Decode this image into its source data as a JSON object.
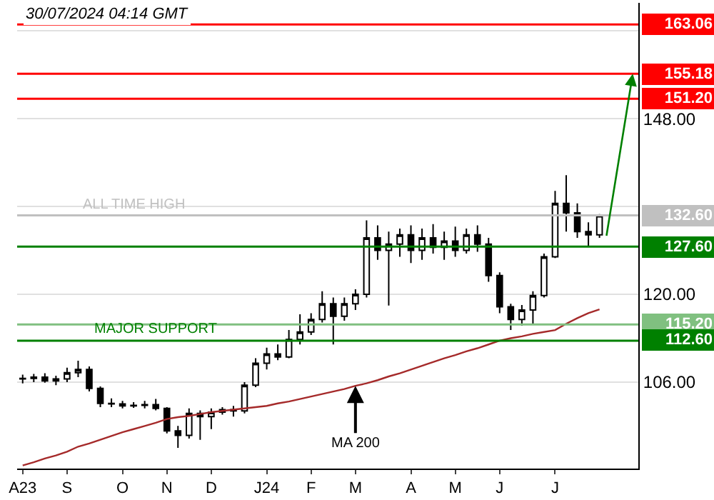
{
  "chart_data": {
    "type": "candlestick",
    "annotations": [
      "30/07/2024 04:14 GMT",
      {
        "text": "MA 200",
        "x": "M",
        "y": 105.4
      },
      {
        "text": "ALL TIME HIGH",
        "y": 132.6
      },
      {
        "text": "MAJOR SUPPORT",
        "y": 112.6
      }
    ],
    "categories": [
      "A23",
      null,
      null,
      null,
      "S",
      null,
      null,
      null,
      null,
      "O",
      null,
      null,
      null,
      "N",
      null,
      null,
      null,
      "D",
      null,
      null,
      null,
      null,
      "J24",
      null,
      null,
      null,
      "F",
      null,
      null,
      null,
      "M",
      null,
      null,
      null,
      null,
      "A",
      null,
      null,
      null,
      "M",
      null,
      null,
      null,
      "J",
      null,
      null,
      null,
      null,
      "J",
      null,
      null,
      null,
      null,
      null,
      null,
      null
    ],
    "ohlc": [
      [
        106.5,
        107.2,
        105.8,
        106.6
      ],
      [
        106.6,
        107.3,
        106.0,
        106.8
      ],
      [
        106.8,
        107.4,
        105.9,
        106.2
      ],
      [
        106.2,
        107.0,
        105.5,
        106.5
      ],
      [
        106.5,
        108.3,
        106.0,
        107.5
      ],
      [
        107.5,
        109.4,
        106.8,
        108.0
      ],
      [
        108.0,
        108.5,
        104.5,
        105.0
      ],
      [
        105.0,
        105.3,
        102.0,
        102.6
      ],
      [
        102.6,
        103.4,
        102.0,
        102.5
      ],
      [
        102.5,
        103.0,
        101.8,
        102.2
      ],
      [
        102.2,
        102.8,
        101.9,
        102.3
      ],
      [
        102.3,
        103.0,
        101.8,
        102.4
      ],
      [
        102.4,
        103.3,
        101.5,
        101.8
      ],
      [
        101.8,
        102.0,
        97.8,
        98.2
      ],
      [
        98.2,
        99.0,
        95.5,
        97.5
      ],
      [
        97.5,
        101.8,
        97.0,
        101.0
      ],
      [
        101.0,
        101.5,
        96.8,
        100.5
      ],
      [
        100.5,
        101.8,
        98.5,
        101.2
      ],
      [
        101.2,
        102.0,
        100.8,
        101.6
      ],
      [
        101.6,
        102.2,
        100.5,
        101.4
      ],
      [
        101.4,
        106.0,
        101.0,
        105.5
      ],
      [
        105.5,
        109.8,
        105.2,
        109.0
      ],
      [
        109.0,
        111.5,
        108.0,
        110.5
      ],
      [
        110.5,
        112.0,
        109.5,
        110.0
      ],
      [
        110.0,
        114.3,
        109.8,
        112.8
      ],
      [
        112.8,
        116.8,
        112.0,
        114.0
      ],
      [
        114.0,
        117.0,
        113.5,
        116.0
      ],
      [
        116.0,
        120.5,
        115.5,
        118.5
      ],
      [
        118.5,
        119.5,
        112.0,
        116.5
      ],
      [
        116.5,
        119.5,
        115.8,
        118.5
      ],
      [
        118.5,
        120.8,
        117.5,
        120.0
      ],
      [
        120.0,
        131.8,
        119.5,
        129.0
      ],
      [
        129.0,
        131.0,
        125.5,
        127.0
      ],
      [
        127.0,
        130.0,
        118.2,
        128.0
      ],
      [
        128.0,
        130.5,
        126.0,
        129.5
      ],
      [
        129.5,
        131.0,
        125.0,
        127.0
      ],
      [
        127.0,
        130.5,
        125.5,
        129.0
      ],
      [
        129.0,
        131.2,
        126.5,
        127.5
      ],
      [
        127.5,
        130.0,
        125.5,
        128.5
      ],
      [
        128.5,
        130.8,
        126.0,
        127.0
      ],
      [
        127.0,
        130.5,
        126.5,
        129.5
      ],
      [
        129.5,
        131.0,
        126.8,
        128.0
      ],
      [
        128.0,
        129.0,
        122.0,
        123.0
      ],
      [
        123.0,
        123.5,
        117.0,
        118.0
      ],
      [
        118.0,
        118.5,
        114.3,
        116.0
      ],
      [
        116.0,
        118.3,
        115.0,
        117.5
      ],
      [
        117.5,
        120.5,
        115.2,
        119.8
      ],
      [
        119.8,
        126.5,
        119.5,
        126.0
      ],
      [
        126.0,
        136.5,
        125.8,
        134.5
      ],
      [
        134.5,
        139.0,
        130.0,
        133.0
      ],
      [
        133.0,
        134.5,
        129.0,
        130.0
      ],
      [
        130.0,
        131.5,
        127.6,
        129.5
      ],
      [
        129.5,
        132.8,
        129.0,
        132.6
      ],
      null,
      null,
      null
    ],
    "color": "#000000",
    "series": [
      {
        "type": "line",
        "color": "#a52a2a",
        "values": [
          92.7,
          93.2,
          93.8,
          94.3,
          94.9,
          95.7,
          96.2,
          96.8,
          97.4,
          98.0,
          98.5,
          99.0,
          99.5,
          100.1,
          100.4,
          100.6,
          100.9,
          101.2,
          101.4,
          101.6,
          101.8,
          102.0,
          102.2,
          102.6,
          102.9,
          103.3,
          103.7,
          104.1,
          104.5,
          104.9,
          105.4,
          105.8,
          106.3,
          106.9,
          107.4,
          108.0,
          108.6,
          109.2,
          109.8,
          110.3,
          110.9,
          111.4,
          112.0,
          112.6,
          113.0,
          113.3,
          113.7,
          114.0,
          114.3,
          115.3,
          116.2,
          117.0,
          117.6,
          null,
          null,
          null
        ]
      }
    ],
    "ref_lines": [
      {
        "axis": "y",
        "value": 163.06,
        "label": "163.06",
        "color": "#ff0000"
      },
      {
        "axis": "y",
        "value": 155.18,
        "label": "155.18",
        "color": "#ff0000"
      },
      {
        "axis": "y",
        "value": 151.2,
        "label": "151.20",
        "color": "#ff0000"
      },
      {
        "axis": "y",
        "value": 132.6,
        "label": "132.60",
        "color": "#c0c0c0"
      },
      {
        "axis": "y",
        "value": 127.6,
        "label": "127.60",
        "color": "#008000"
      },
      {
        "axis": "y",
        "value": 115.2,
        "label": "115.20",
        "color": "#80c080"
      },
      {
        "axis": "y",
        "value": 112.6,
        "label": "112.60",
        "color": "#008000"
      }
    ],
    "ylim": [
      92.2,
      166.5
    ],
    "yticks": [
      {
        "value": 106,
        "label": "106.00"
      },
      {
        "value": 120,
        "label": "120.00"
      },
      {
        "value": 134,
        "label": null
      },
      {
        "value": 148,
        "label": "148.00"
      },
      {
        "value": 162,
        "label": null
      }
    ],
    "grid": "y"
  }
}
